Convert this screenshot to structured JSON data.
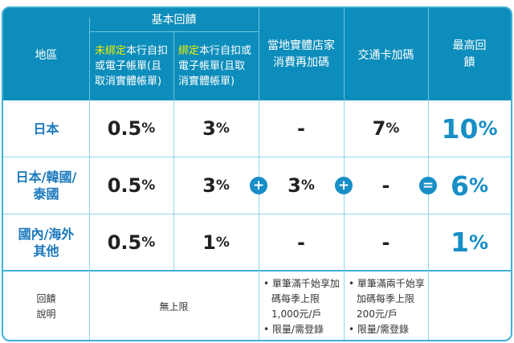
{
  "header": {
    "region": "地區",
    "basic": "基本回饋",
    "unbound_hl": "未綁定",
    "unbound_rest": "本行自扣或電子帳單(且取消實體帳單)",
    "bound_hl": "綁定",
    "bound_rest": "本行自扣或電子帳單(且取消實體帳單)",
    "local": "當地實體店家消費再加碼",
    "transit": "交通卡加碼",
    "max": "最高回饋"
  },
  "rows": [
    {
      "region": "日本",
      "unbound": "0.5",
      "bound": "3",
      "local": "-",
      "transit": "7",
      "max": "10"
    },
    {
      "region": "日本/韓國/泰國",
      "unbound": "0.5",
      "bound": "3",
      "local": "3",
      "transit": "-",
      "max": "6"
    },
    {
      "region": "國內/海外其他",
      "unbound": "0.5",
      "bound": "1",
      "local": "-",
      "transit": "-",
      "max": "1"
    }
  ],
  "pct": "%",
  "ops": {
    "plus": "+",
    "equals": "="
  },
  "notes": {
    "label": "回饋說明",
    "basic": "無上限",
    "local": [
      "單筆滿千始享加碼每季上限1,000元/戶",
      "限量/需登錄"
    ],
    "transit": [
      "單筆滿兩千始享加碼每季上限200元/戶",
      "限量/需登錄"
    ]
  },
  "colors": {
    "header": "#0d8dbb",
    "accent": "#178ec6",
    "highlight": "#f0f000"
  }
}
